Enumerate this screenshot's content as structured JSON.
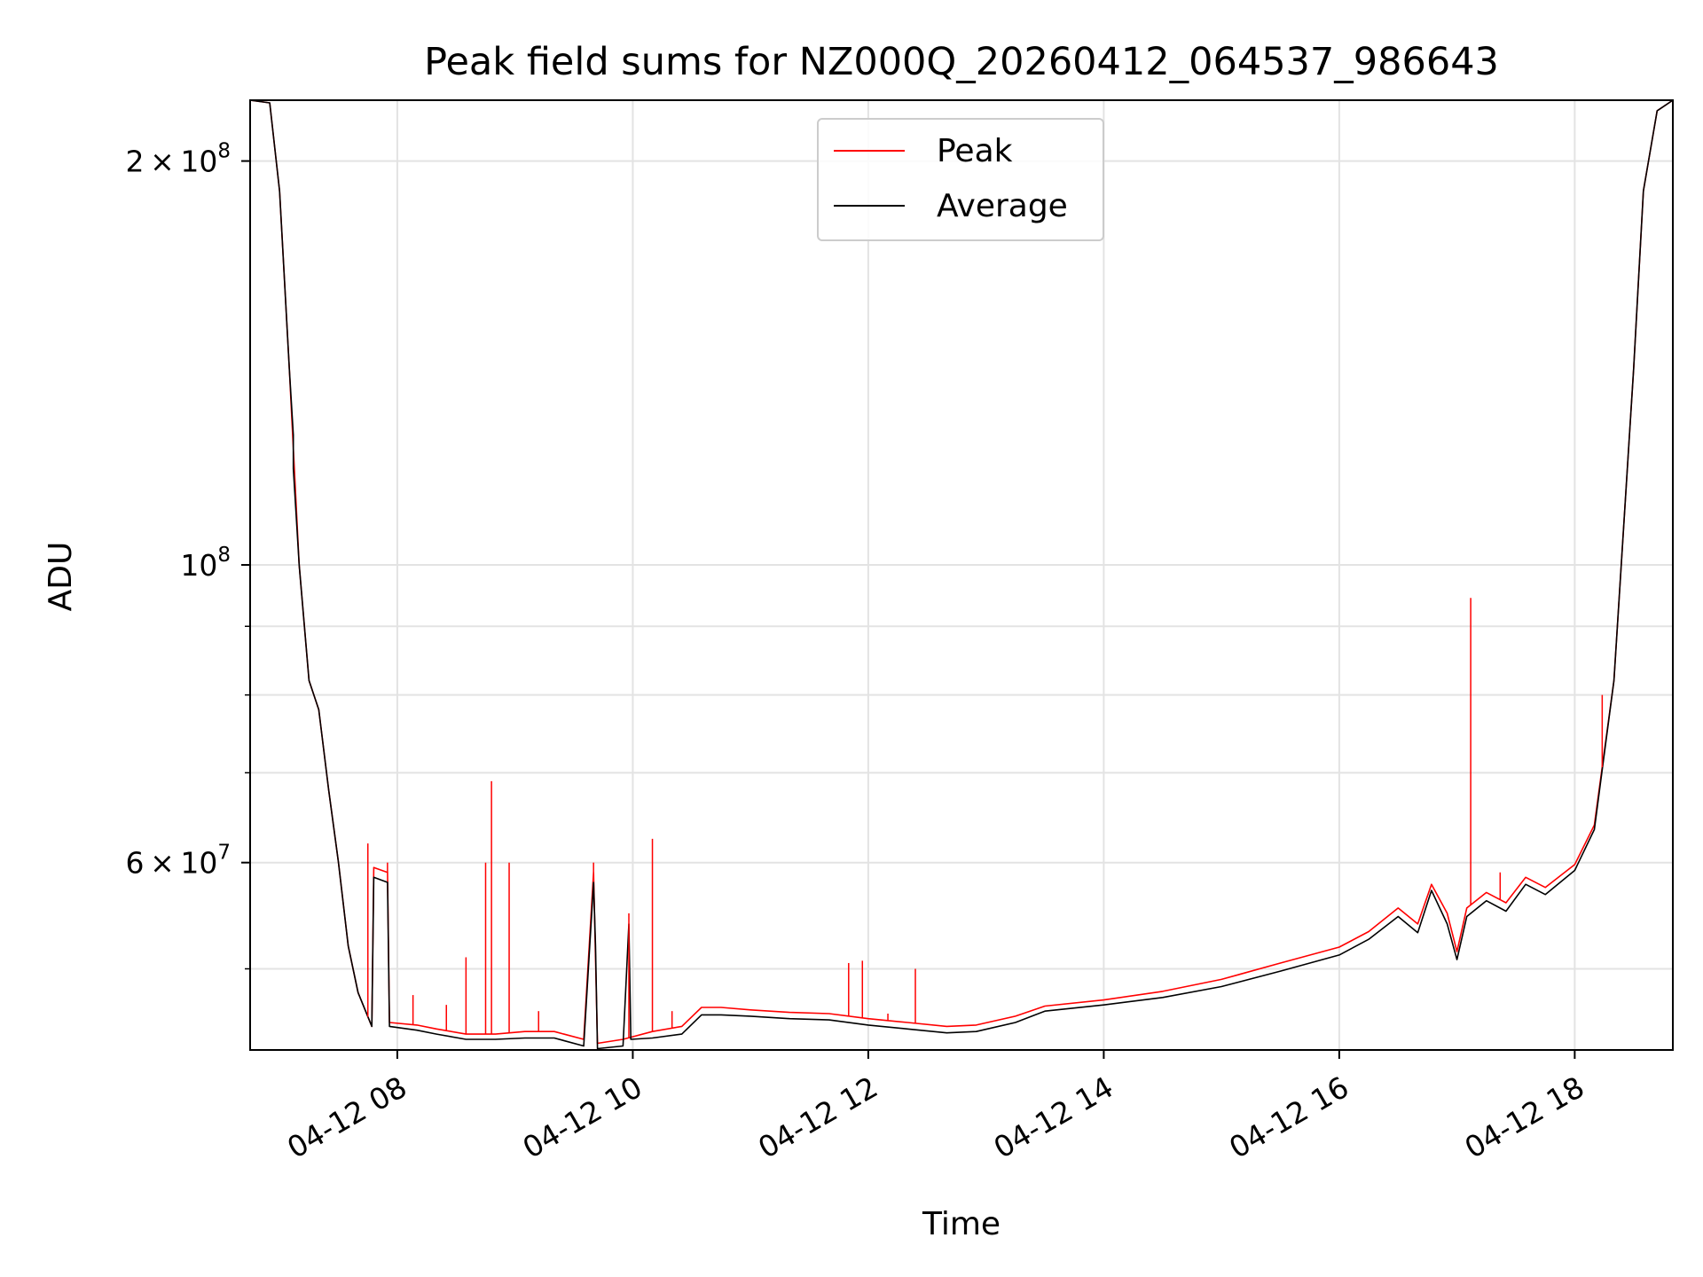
{
  "chart_data": {
    "type": "line",
    "title": "Peak field sums for NZ000Q_20260412_064537_986643",
    "xlabel": "Time",
    "ylabel": "ADU",
    "yscale": "log",
    "grid": true,
    "legend_position": "upper center",
    "xlim": [
      "2026-04-12 06:45",
      "2026-04-12 18:50"
    ],
    "ylim": [
      43500000,
      222000000
    ],
    "x_ticks": [
      {
        "value": "2026-04-12 08:00",
        "label": "04-12 08"
      },
      {
        "value": "2026-04-12 10:00",
        "label": "04-12 10"
      },
      {
        "value": "2026-04-12 12:00",
        "label": "04-12 12"
      },
      {
        "value": "2026-04-12 14:00",
        "label": "04-12 14"
      },
      {
        "value": "2026-04-12 16:00",
        "label": "04-12 16"
      },
      {
        "value": "2026-04-12 18:00",
        "label": "04-12 18"
      }
    ],
    "y_ticks": [
      {
        "value": 60000000,
        "base": "6 × 10",
        "exp": "7"
      },
      {
        "value": 100000000,
        "base": "10",
        "exp": "8"
      },
      {
        "value": 200000000,
        "base": "2 × 10",
        "exp": "8"
      }
    ],
    "y_minor_ticks": [
      50000000,
      70000000,
      80000000,
      90000000
    ],
    "series": [
      {
        "name": "Peak",
        "color": "#ff0000",
        "points": [
          [
            "2026-04-12 06:45",
            222000000
          ],
          [
            "2026-04-12 06:55",
            221000000
          ],
          [
            "2026-04-12 07:00",
            190000000
          ],
          [
            "2026-04-12 07:05",
            140000000
          ],
          [
            "2026-04-12 07:10",
            100000000
          ],
          [
            "2026-04-12 07:15",
            82000000
          ],
          [
            "2026-04-12 07:20",
            78000000
          ],
          [
            "2026-04-12 07:25",
            68000000
          ],
          [
            "2026-04-12 07:30",
            60000000
          ],
          [
            "2026-04-12 07:35",
            52000000
          ],
          [
            "2026-04-12 07:40",
            48000000
          ],
          [
            "2026-04-12 07:47",
            45300000
          ],
          [
            "2026-04-12 07:48",
            59500000
          ],
          [
            "2026-04-12 07:55",
            59000000
          ],
          [
            "2026-04-12 07:56",
            45600000
          ],
          [
            "2026-04-12 08:10",
            45400000
          ],
          [
            "2026-04-12 08:20",
            45100000
          ],
          [
            "2026-04-12 08:35",
            44700000
          ],
          [
            "2026-04-12 08:50",
            44700000
          ],
          [
            "2026-04-12 09:05",
            44900000
          ],
          [
            "2026-04-12 09:20",
            44900000
          ],
          [
            "2026-04-12 09:35",
            44300000
          ],
          [
            "2026-04-12 09:40",
            59000000
          ],
          [
            "2026-04-12 09:42",
            44000000
          ],
          [
            "2026-04-12 09:55",
            44300000
          ],
          [
            "2026-04-12 10:10",
            44900000
          ],
          [
            "2026-04-12 10:25",
            45300000
          ],
          [
            "2026-04-12 10:35",
            46800000
          ],
          [
            "2026-04-12 10:45",
            46800000
          ],
          [
            "2026-04-12 11:00",
            46600000
          ],
          [
            "2026-04-12 11:20",
            46400000
          ],
          [
            "2026-04-12 11:40",
            46300000
          ],
          [
            "2026-04-12 12:00",
            45900000
          ],
          [
            "2026-04-12 12:20",
            45600000
          ],
          [
            "2026-04-12 12:40",
            45300000
          ],
          [
            "2026-04-12 12:55",
            45400000
          ],
          [
            "2026-04-12 13:15",
            46100000
          ],
          [
            "2026-04-12 13:30",
            46900000
          ],
          [
            "2026-04-12 14:00",
            47400000
          ],
          [
            "2026-04-12 14:30",
            48100000
          ],
          [
            "2026-04-12 15:00",
            49100000
          ],
          [
            "2026-04-12 15:30",
            50500000
          ],
          [
            "2026-04-12 16:00",
            51900000
          ],
          [
            "2026-04-12 16:15",
            53300000
          ],
          [
            "2026-04-12 16:30",
            55500000
          ],
          [
            "2026-04-12 16:40",
            54000000
          ],
          [
            "2026-04-12 16:47",
            57800000
          ],
          [
            "2026-04-12 16:55",
            55000000
          ],
          [
            "2026-04-12 17:00",
            51500000
          ],
          [
            "2026-04-12 17:05",
            55500000
          ],
          [
            "2026-04-12 17:15",
            57000000
          ],
          [
            "2026-04-12 17:25",
            56000000
          ],
          [
            "2026-04-12 17:35",
            58500000
          ],
          [
            "2026-04-12 17:45",
            57500000
          ],
          [
            "2026-04-12 18:00",
            59800000
          ],
          [
            "2026-04-12 18:10",
            64000000
          ],
          [
            "2026-04-12 18:20",
            82000000
          ],
          [
            "2026-04-12 18:30",
            140000000
          ],
          [
            "2026-04-12 18:35",
            190000000
          ],
          [
            "2026-04-12 18:42",
            218000000
          ],
          [
            "2026-04-12 18:50",
            222000000
          ]
        ],
        "spikes": [
          [
            "2026-04-12 07:45",
            62000000
          ],
          [
            "2026-04-12 07:55",
            60000000
          ],
          [
            "2026-04-12 08:08",
            47800000
          ],
          [
            "2026-04-12 08:25",
            47000000
          ],
          [
            "2026-04-12 08:35",
            51000000
          ],
          [
            "2026-04-12 08:45",
            60000000
          ],
          [
            "2026-04-12 08:48",
            69000000
          ],
          [
            "2026-04-12 08:57",
            60000000
          ],
          [
            "2026-04-12 09:12",
            46500000
          ],
          [
            "2026-04-12 09:40",
            60000000
          ],
          [
            "2026-04-12 09:58",
            55000000
          ],
          [
            "2026-04-12 10:10",
            62500000
          ],
          [
            "2026-04-12 10:20",
            46500000
          ],
          [
            "2026-04-12 11:50",
            50500000
          ],
          [
            "2026-04-12 11:57",
            50700000
          ],
          [
            "2026-04-12 12:10",
            46300000
          ],
          [
            "2026-04-12 12:24",
            50000000
          ],
          [
            "2026-04-12 17:07",
            94500000
          ],
          [
            "2026-04-12 17:22",
            59000000
          ],
          [
            "2026-04-12 18:14",
            80000000
          ]
        ]
      },
      {
        "name": "Average",
        "color": "#000000",
        "points": [
          [
            "2026-04-12 06:45",
            222000000
          ],
          [
            "2026-04-12 06:55",
            221000000
          ],
          [
            "2026-04-12 07:00",
            190000000
          ],
          [
            "2026-04-12 07:05",
            140000000
          ],
          [
            "2026-04-12 07:07",
            125000000
          ],
          [
            "2026-04-12 07:07",
            118000000
          ],
          [
            "2026-04-12 07:10",
            100000000
          ],
          [
            "2026-04-12 07:15",
            82000000
          ],
          [
            "2026-04-12 07:20",
            78000000
          ],
          [
            "2026-04-12 07:25",
            68000000
          ],
          [
            "2026-04-12 07:30",
            60000000
          ],
          [
            "2026-04-12 07:35",
            52000000
          ],
          [
            "2026-04-12 07:40",
            48000000
          ],
          [
            "2026-04-12 07:47",
            45300000
          ],
          [
            "2026-04-12 07:48",
            58500000
          ],
          [
            "2026-04-12 07:55",
            58000000
          ],
          [
            "2026-04-12 07:56",
            45300000
          ],
          [
            "2026-04-12 08:10",
            45000000
          ],
          [
            "2026-04-12 08:20",
            44700000
          ],
          [
            "2026-04-12 08:35",
            44300000
          ],
          [
            "2026-04-12 08:50",
            44300000
          ],
          [
            "2026-04-12 09:05",
            44400000
          ],
          [
            "2026-04-12 09:20",
            44400000
          ],
          [
            "2026-04-12 09:35",
            43800000
          ],
          [
            "2026-04-12 09:40",
            58000000
          ],
          [
            "2026-04-12 09:41",
            52000000
          ],
          [
            "2026-04-12 09:42",
            43600000
          ],
          [
            "2026-04-12 09:55",
            43800000
          ],
          [
            "2026-04-12 09:58",
            54000000
          ],
          [
            "2026-04-12 09:59",
            44300000
          ],
          [
            "2026-04-12 10:10",
            44400000
          ],
          [
            "2026-04-12 10:25",
            44700000
          ],
          [
            "2026-04-12 10:35",
            46200000
          ],
          [
            "2026-04-12 10:45",
            46200000
          ],
          [
            "2026-04-12 11:00",
            46100000
          ],
          [
            "2026-04-12 11:20",
            45900000
          ],
          [
            "2026-04-12 11:40",
            45800000
          ],
          [
            "2026-04-12 12:00",
            45400000
          ],
          [
            "2026-04-12 12:20",
            45100000
          ],
          [
            "2026-04-12 12:40",
            44800000
          ],
          [
            "2026-04-12 12:55",
            44900000
          ],
          [
            "2026-04-12 13:15",
            45600000
          ],
          [
            "2026-04-12 13:30",
            46500000
          ],
          [
            "2026-04-12 14:00",
            47000000
          ],
          [
            "2026-04-12 14:30",
            47600000
          ],
          [
            "2026-04-12 15:00",
            48500000
          ],
          [
            "2026-04-12 15:30",
            49800000
          ],
          [
            "2026-04-12 16:00",
            51200000
          ],
          [
            "2026-04-12 16:15",
            52600000
          ],
          [
            "2026-04-12 16:30",
            54700000
          ],
          [
            "2026-04-12 16:40",
            53200000
          ],
          [
            "2026-04-12 16:47",
            57200000
          ],
          [
            "2026-04-12 16:55",
            54000000
          ],
          [
            "2026-04-12 17:00",
            50800000
          ],
          [
            "2026-04-12 17:05",
            54700000
          ],
          [
            "2026-04-12 17:15",
            56200000
          ],
          [
            "2026-04-12 17:25",
            55200000
          ],
          [
            "2026-04-12 17:35",
            57800000
          ],
          [
            "2026-04-12 17:45",
            56800000
          ],
          [
            "2026-04-12 18:00",
            59200000
          ],
          [
            "2026-04-12 18:10",
            63500000
          ],
          [
            "2026-04-12 18:20",
            82000000
          ],
          [
            "2026-04-12 18:30",
            140000000
          ],
          [
            "2026-04-12 18:35",
            190000000
          ],
          [
            "2026-04-12 18:42",
            218000000
          ],
          [
            "2026-04-12 18:50",
            222000000
          ]
        ]
      }
    ]
  }
}
